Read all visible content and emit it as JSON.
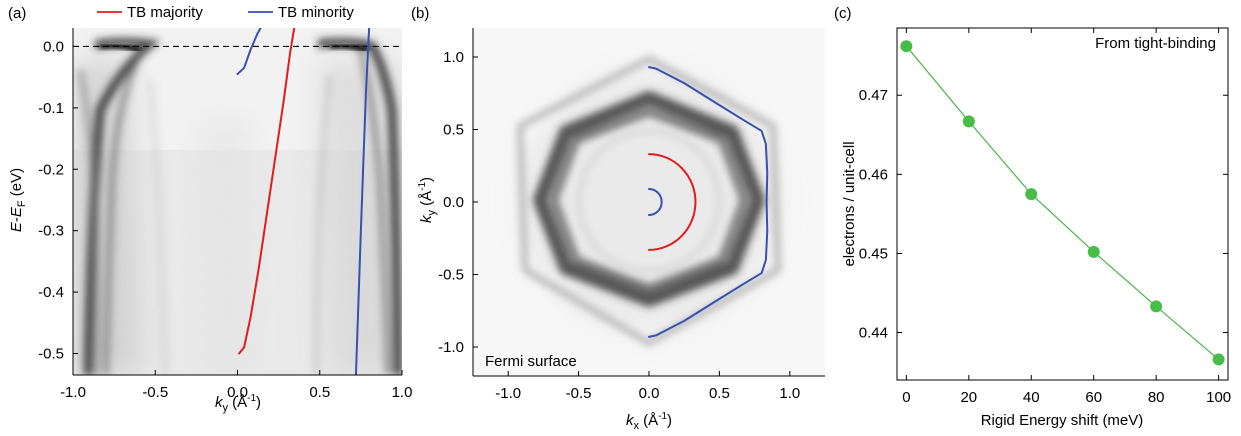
{
  "colors": {
    "majority": "#e21b1b",
    "minority": "#3651b0",
    "green_line": "#48b848",
    "green_point": "#47bc47",
    "axis": "#000000"
  },
  "chart_data": [
    {
      "panel": "(a)",
      "type": "line",
      "xlabel": "k_y (Å⁻¹)",
      "xlabel_parts": {
        "sym": "k",
        "sub": "y",
        "unit": " (Å",
        "sup": "-1",
        "close": ")"
      },
      "ylabel": "E-E_F (eV)",
      "ylabel_parts": {
        "a": "E",
        "mid": "-",
        "b": "E",
        "sub": "F",
        "unit": " (eV)"
      },
      "xlim": [
        -1.0,
        1.0
      ],
      "ylim": [
        -0.535,
        0.03
      ],
      "xticks": [
        -1.0,
        -0.5,
        0.0,
        0.5,
        1.0
      ],
      "xtick_labels": [
        "-1.0",
        "-0.5",
        "0.0",
        "0.5",
        "1.0"
      ],
      "yticks": [
        0.0,
        -0.1,
        -0.2,
        -0.3,
        -0.4,
        -0.5
      ],
      "ytick_labels": [
        "0.0",
        "-0.1",
        "-0.2",
        "-0.3",
        "-0.4",
        "-0.5"
      ],
      "fermi_level": 0.0,
      "legend": {
        "placement": "top",
        "entries": [
          "TB majority",
          "TB minority"
        ]
      },
      "background": "ARPES intensity map (grayscale)",
      "series": [
        {
          "name": "TB majority",
          "color_key": "majority",
          "x": [
            0.01,
            0.04,
            0.08,
            0.13,
            0.18,
            0.23,
            0.28,
            0.32,
            0.345
          ],
          "y": [
            -0.5,
            -0.49,
            -0.44,
            -0.36,
            -0.27,
            -0.18,
            -0.09,
            -0.01,
            0.03
          ]
        },
        {
          "name": "TB minority",
          "color_key": "minority",
          "x": [
            0.72,
            0.75,
            0.78,
            0.8
          ],
          "y": [
            -0.535,
            -0.3,
            -0.08,
            0.03
          ]
        },
        {
          "name": "TB minority",
          "color_key": "minority",
          "x": [
            0.0,
            0.04,
            0.08,
            0.12,
            0.14
          ],
          "y": [
            -0.045,
            -0.035,
            -0.005,
            0.02,
            0.03
          ]
        }
      ]
    },
    {
      "panel": "(b)",
      "type": "line",
      "xlabel": "k_x (Å⁻¹)",
      "xlabel_parts": {
        "sym": "k",
        "sub": "x",
        "unit": " (Å",
        "sup": "-1",
        "close": ")"
      },
      "ylabel": "k_y (Å⁻¹)",
      "ylabel_parts": {
        "sym": "k",
        "sub": "y",
        "unit": " (Å",
        "sup": "-1",
        "close": ")"
      },
      "xlim": [
        -1.25,
        1.25
      ],
      "ylim": [
        -1.2,
        1.2
      ],
      "xticks": [
        -1.0,
        -0.5,
        0.0,
        0.5,
        1.0
      ],
      "xtick_labels": [
        "-1.0",
        "-0.5",
        "0.0",
        "0.5",
        "1.0"
      ],
      "yticks": [
        1.0,
        0.5,
        0.0,
        -0.5,
        -1.0
      ],
      "ytick_labels": [
        "1.0",
        "0.5",
        "0.0",
        "-0.5",
        "-1.0"
      ],
      "annotation": "Fermi surface",
      "background": "ARPES Fermi surface intensity map (grayscale)",
      "series": [
        {
          "name": "majority contour",
          "color_key": "majority",
          "shape": "semicircle",
          "center": [
            0.0,
            0.0
          ],
          "radius": 0.33
        },
        {
          "name": "minority inner contour",
          "color_key": "minority",
          "shape": "semicircle",
          "center": [
            0.0,
            0.0
          ],
          "radius": 0.09
        },
        {
          "name": "minority outer contour",
          "color_key": "minority",
          "x": [
            0.0,
            0.05,
            0.25,
            0.48,
            0.68,
            0.8,
            0.83,
            0.84,
            0.835,
            0.84,
            0.83,
            0.8,
            0.68,
            0.48,
            0.25,
            0.05,
            0.0
          ],
          "y": [
            0.93,
            0.92,
            0.82,
            0.68,
            0.56,
            0.49,
            0.4,
            0.2,
            0.0,
            -0.2,
            -0.4,
            -0.49,
            -0.56,
            -0.68,
            -0.82,
            -0.92,
            -0.93
          ]
        }
      ]
    },
    {
      "panel": "(c)",
      "type": "scatter",
      "xlabel": "Rigid Energy shift (meV)",
      "ylabel": "electrons / unit-cell",
      "annotation": "From tight-binding",
      "xlim": [
        -3,
        103
      ],
      "ylim": [
        0.434,
        0.4785
      ],
      "xticks": [
        0,
        20,
        40,
        60,
        80,
        100
      ],
      "xtick_labels": [
        "0",
        "20",
        "40",
        "60",
        "80",
        "100"
      ],
      "yticks": [
        0.44,
        0.45,
        0.46,
        0.47
      ],
      "ytick_labels": [
        "0.44",
        "0.45",
        "0.46",
        "0.47"
      ],
      "series": [
        {
          "name": "electrons / unit-cell",
          "color_key": "green_point",
          "x": [
            0,
            20,
            40,
            60,
            80,
            100
          ],
          "y": [
            0.4762,
            0.4667,
            0.4575,
            0.4502,
            0.4433,
            0.4366
          ]
        }
      ]
    }
  ]
}
